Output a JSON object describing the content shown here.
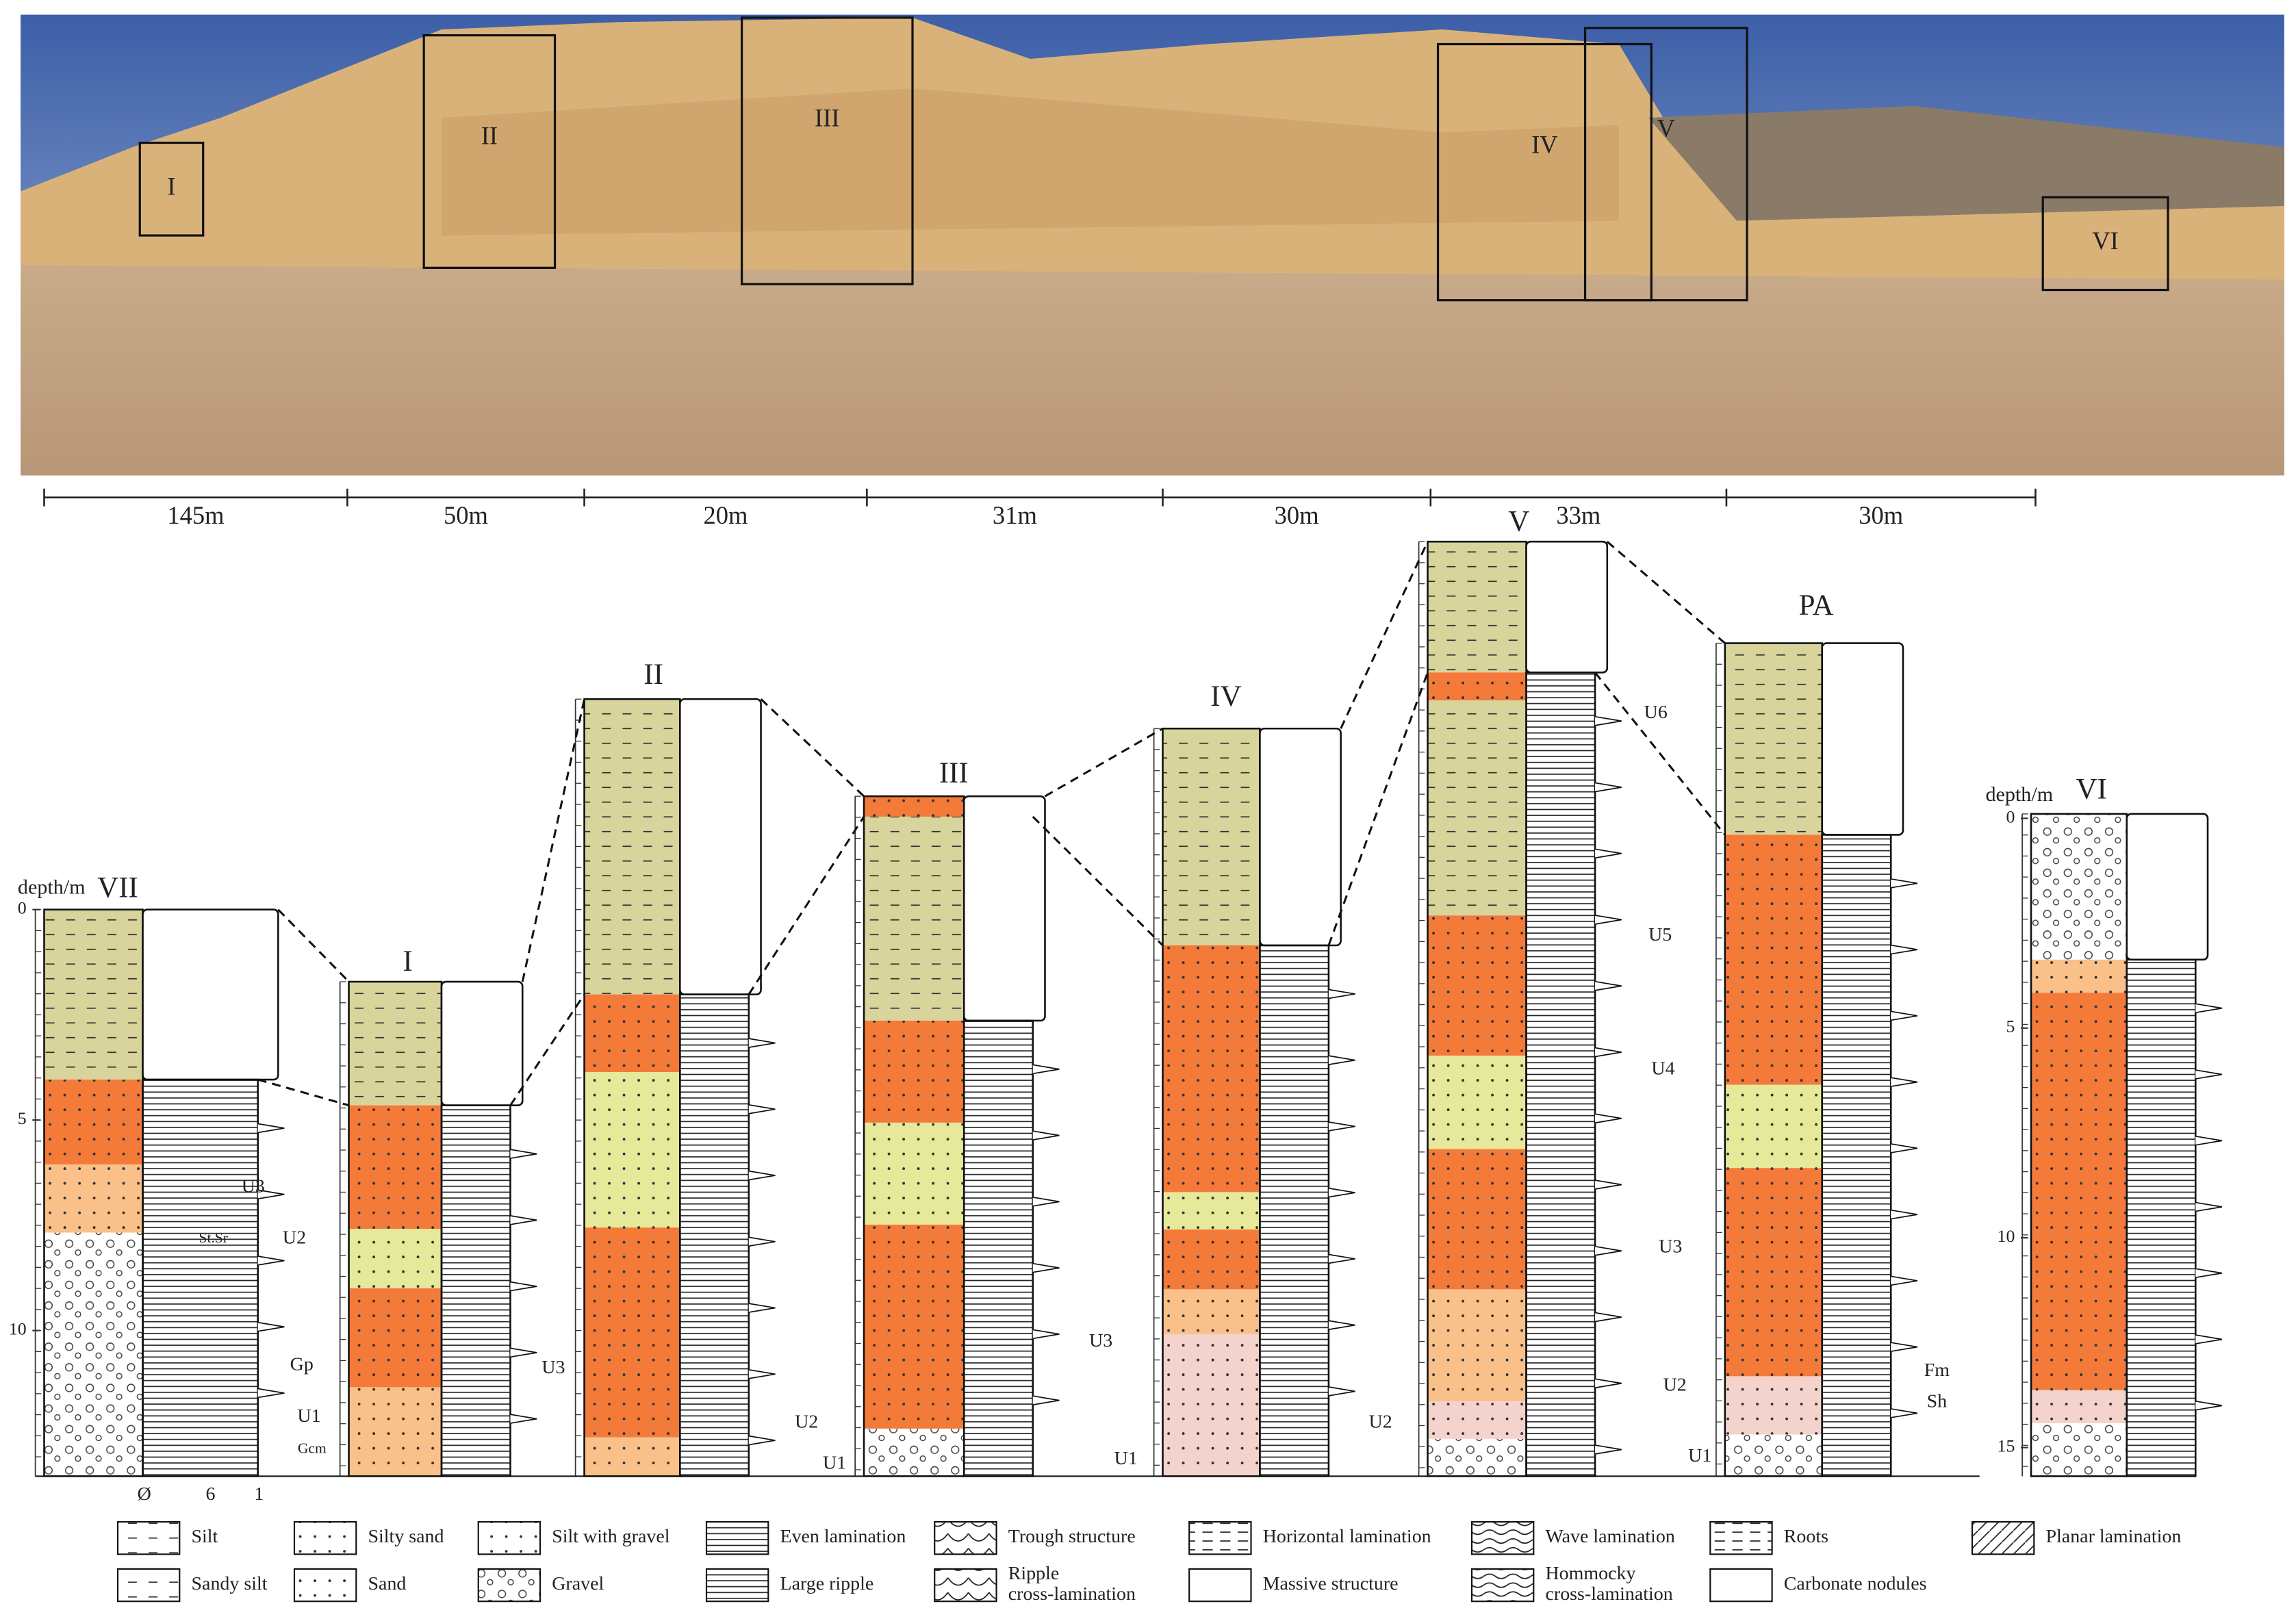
{
  "photo": {
    "boxes": [
      "I",
      "II",
      "III",
      "IV",
      "V",
      "VI"
    ]
  },
  "distances": [
    "145m",
    "50m",
    "20m",
    "31m",
    "30m",
    "33m",
    "30m"
  ],
  "columns": [
    {
      "label": "VII",
      "labels": [
        "U3",
        "St.Sr",
        "U2",
        "Gp",
        "U1",
        "Gcm"
      ]
    },
    {
      "label": "I",
      "labels": [
        "U3"
      ]
    },
    {
      "label": "II",
      "labels": [
        "U2"
      ]
    },
    {
      "label": "III",
      "labels": [
        "U3",
        "U1"
      ]
    },
    {
      "label": "IV",
      "labels": [
        "U1",
        "U2"
      ]
    },
    {
      "label": "V",
      "labels": [
        "U6",
        "U5",
        "U4",
        "U3",
        "U2",
        "U1"
      ]
    },
    {
      "label": "PA",
      "labels": [
        "Fm",
        "Sh"
      ]
    },
    {
      "label": "VI",
      "labels": []
    }
  ],
  "depth_axes": [
    {
      "title": "depth/m",
      "ticks": [
        0,
        5,
        10
      ]
    },
    {
      "title": "depth/m",
      "ticks": [
        0,
        5,
        10,
        15
      ]
    }
  ],
  "grain_scale": [
    "Ø",
    "6",
    "1"
  ],
  "legend": [
    {
      "lines": [
        "Silt"
      ]
    },
    {
      "lines": [
        "Silty sand"
      ]
    },
    {
      "lines": [
        "Silt with gravel"
      ]
    },
    {
      "lines": [
        "Even lamination"
      ]
    },
    {
      "lines": [
        "Trough structure"
      ]
    },
    {
      "lines": [
        "Horizontal lamination"
      ]
    },
    {
      "lines": [
        "Wave lamination"
      ]
    },
    {
      "lines": [
        "Roots"
      ]
    },
    {
      "lines": [
        "Planar lamination"
      ]
    },
    {
      "lines": [
        "Sandy silt"
      ]
    },
    {
      "lines": [
        "Sand"
      ]
    },
    {
      "lines": [
        "Gravel"
      ]
    },
    {
      "lines": [
        "Large ripple"
      ]
    },
    {
      "lines": [
        "Ripple",
        "cross-lamination"
      ]
    },
    {
      "lines": [
        "Massive structure"
      ]
    },
    {
      "lines": [
        "Hommocky",
        "cross-lamination"
      ]
    },
    {
      "lines": [
        "Carbonate  nodules"
      ]
    }
  ]
}
